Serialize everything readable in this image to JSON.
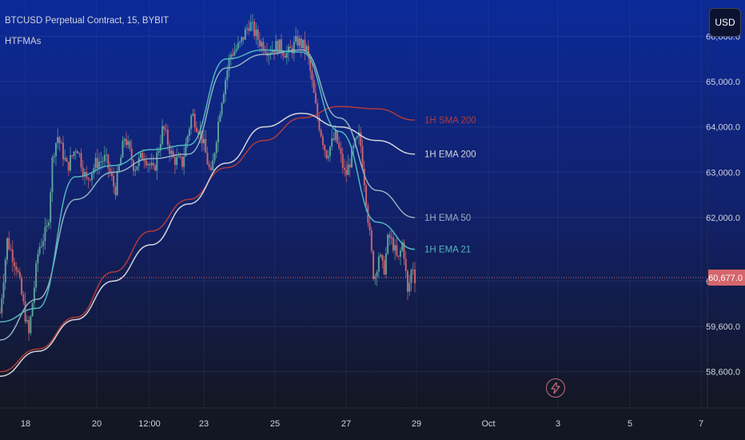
{
  "header": {
    "title": "BTCUSD Perpetual Contract, 15, BYBIT",
    "indicator": "HTFMAs"
  },
  "currency_button": "USD",
  "icons": {
    "alert": "lightning-icon"
  },
  "colors": {
    "background_top": "#0b2a99",
    "background_bottom": "#131722",
    "candle_up": "#5fa89e",
    "candle_down": "#d5666b",
    "ema21": "#4fb7c0",
    "ema50": "#8fb1bd",
    "ema200": "#d2d4d9",
    "sma200": "#b23a3a",
    "price_label": "#d5666b"
  },
  "chart_data": {
    "type": "line",
    "title": "BTCUSD Perpetual Contract, 15, BYBIT",
    "x_ticks": [
      "18",
      "20",
      "12:00",
      "23",
      "25",
      "27",
      "29",
      "Oct",
      "3",
      "5",
      "7"
    ],
    "y_ticks": [
      58600,
      59600,
      60600,
      62000,
      63000,
      64000,
      65000,
      66000
    ],
    "y_tick_labels": [
      "58,600.0",
      "59,600.0",
      "60,600.0",
      "62,000.0",
      "63,000.0",
      "64,000.0",
      "65,000.0",
      "66,000.0"
    ],
    "ylim": [
      57800,
      66800
    ],
    "grid": true,
    "last_price": 60677.0,
    "last_price_label": "60,677.0",
    "series": [
      {
        "name": "1H SMA 200",
        "key": "sma200",
        "points": [
          [
            0,
            58600
          ],
          [
            1,
            59100
          ],
          [
            2,
            59800
          ],
          [
            3,
            60800
          ],
          [
            4,
            61700
          ],
          [
            5,
            62400
          ],
          [
            6,
            63100
          ],
          [
            7,
            63700
          ],
          [
            8,
            64200
          ],
          [
            9,
            64450
          ],
          [
            10,
            64400
          ],
          [
            11,
            64150
          ]
        ]
      },
      {
        "name": "1H EMA 200",
        "key": "ema200",
        "points": [
          [
            0,
            58500
          ],
          [
            1,
            59050
          ],
          [
            2,
            59750
          ],
          [
            3,
            60600
          ],
          [
            4,
            61400
          ],
          [
            5,
            62300
          ],
          [
            6,
            63200
          ],
          [
            7,
            64000
          ],
          [
            8,
            64300
          ],
          [
            9,
            64000
          ],
          [
            10,
            63700
          ],
          [
            11,
            63400
          ]
        ]
      },
      {
        "name": "1H EMA 50",
        "key": "ema50",
        "points": [
          [
            0,
            59300
          ],
          [
            1,
            60200
          ],
          [
            2,
            62400
          ],
          [
            3,
            63000
          ],
          [
            4,
            63300
          ],
          [
            5,
            63400
          ],
          [
            6,
            65300
          ],
          [
            7,
            65600
          ],
          [
            8,
            65700
          ],
          [
            9,
            64200
          ],
          [
            10,
            62600
          ],
          [
            11,
            62000
          ]
        ]
      },
      {
        "name": "1H EMA 21",
        "key": "ema21",
        "points": [
          [
            0,
            59700
          ],
          [
            1,
            60000
          ],
          [
            2,
            62900
          ],
          [
            3,
            63150
          ],
          [
            4,
            63500
          ],
          [
            5,
            63600
          ],
          [
            6,
            65500
          ],
          [
            7,
            65700
          ],
          [
            8,
            65650
          ],
          [
            9,
            63900
          ],
          [
            10,
            61900
          ],
          [
            11,
            61300
          ]
        ]
      }
    ],
    "price_path": [
      [
        0,
        59900
      ],
      [
        0.15,
        61500
      ],
      [
        0.35,
        60900
      ],
      [
        0.6,
        59400
      ],
      [
        0.8,
        61300
      ],
      [
        1.0,
        61800
      ],
      [
        1.1,
        63400
      ],
      [
        1.2,
        63800
      ],
      [
        1.4,
        63100
      ],
      [
        1.6,
        63600
      ],
      [
        1.8,
        62800
      ],
      [
        2.0,
        63200
      ],
      [
        2.2,
        63300
      ],
      [
        2.4,
        62600
      ],
      [
        2.6,
        63800
      ],
      [
        2.8,
        63100
      ],
      [
        3.0,
        63400
      ],
      [
        3.2,
        63000
      ],
      [
        3.4,
        64000
      ],
      [
        3.6,
        63300
      ],
      [
        3.8,
        63200
      ],
      [
        4.0,
        64300
      ],
      [
        4.2,
        63800
      ],
      [
        4.4,
        62900
      ],
      [
        4.6,
        64500
      ],
      [
        4.8,
        65600
      ],
      [
        5.0,
        65800
      ],
      [
        5.2,
        66300
      ],
      [
        5.4,
        65900
      ],
      [
        5.6,
        65700
      ],
      [
        5.8,
        65800
      ],
      [
        6.0,
        65600
      ],
      [
        6.2,
        65900
      ],
      [
        6.4,
        65700
      ],
      [
        6.6,
        64300
      ],
      [
        6.8,
        63400
      ],
      [
        7.0,
        63800
      ],
      [
        7.2,
        62900
      ],
      [
        7.4,
        63600
      ],
      [
        7.5,
        63800
      ],
      [
        7.6,
        62800
      ],
      [
        7.8,
        60600
      ],
      [
        7.9,
        61200
      ],
      [
        8.0,
        60800
      ],
      [
        8.1,
        61600
      ],
      [
        8.2,
        61400
      ],
      [
        8.3,
        61000
      ],
      [
        8.4,
        61500
      ],
      [
        8.5,
        60300
      ],
      [
        8.6,
        61000
      ],
      [
        8.65,
        60677
      ]
    ]
  }
}
